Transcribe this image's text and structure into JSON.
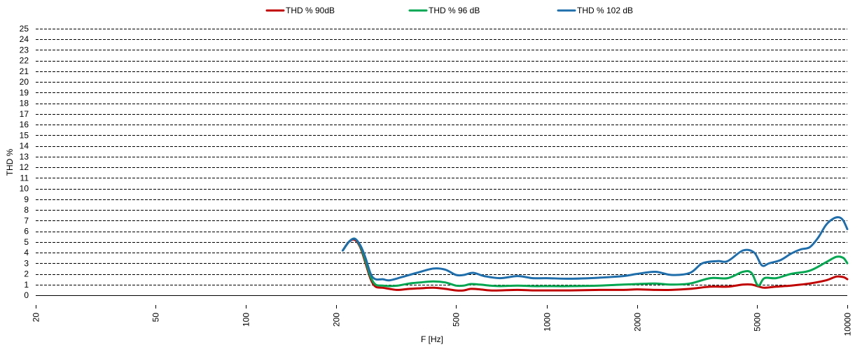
{
  "chart_data": {
    "type": "line",
    "xlabel": "F [Hz]",
    "ylabel": "THD %",
    "x_scale": "log",
    "xlim": [
      20,
      10000
    ],
    "ylim": [
      0,
      25
    ],
    "x_ticks": [
      20,
      50,
      100,
      200,
      500,
      1000,
      2000,
      5000,
      10000
    ],
    "y_ticks": [
      0,
      1,
      2,
      3,
      4,
      5,
      6,
      7,
      8,
      9,
      10,
      11,
      12,
      13,
      14,
      15,
      16,
      17,
      18,
      19,
      20,
      21,
      22,
      23,
      24,
      25
    ],
    "grid": {
      "horizontal": true,
      "vertical": false,
      "style": "dashed"
    },
    "legend_position": "top",
    "series": [
      {
        "name": "THD % 90dB",
        "color": "#c00000",
        "points": [
          [
            210,
            4.2
          ],
          [
            220,
            5.0
          ],
          [
            230,
            5.2
          ],
          [
            240,
            4.5
          ],
          [
            250,
            3.0
          ],
          [
            260,
            1.5
          ],
          [
            270,
            0.8
          ],
          [
            285,
            0.7
          ],
          [
            300,
            0.6
          ],
          [
            320,
            0.5
          ],
          [
            350,
            0.6
          ],
          [
            380,
            0.65
          ],
          [
            420,
            0.7
          ],
          [
            460,
            0.6
          ],
          [
            500,
            0.45
          ],
          [
            530,
            0.45
          ],
          [
            560,
            0.6
          ],
          [
            600,
            0.55
          ],
          [
            650,
            0.45
          ],
          [
            700,
            0.45
          ],
          [
            800,
            0.5
          ],
          [
            900,
            0.45
          ],
          [
            1000,
            0.45
          ],
          [
            1200,
            0.45
          ],
          [
            1500,
            0.5
          ],
          [
            1800,
            0.5
          ],
          [
            2000,
            0.55
          ],
          [
            2300,
            0.5
          ],
          [
            2600,
            0.5
          ],
          [
            3000,
            0.6
          ],
          [
            3500,
            0.8
          ],
          [
            4000,
            0.8
          ],
          [
            4500,
            1.0
          ],
          [
            4800,
            1.0
          ],
          [
            5100,
            0.8
          ],
          [
            5300,
            0.7
          ],
          [
            5800,
            0.8
          ],
          [
            6500,
            0.9
          ],
          [
            7500,
            1.1
          ],
          [
            8500,
            1.4
          ],
          [
            9200,
            1.75
          ],
          [
            9700,
            1.7
          ],
          [
            10000,
            1.5
          ]
        ]
      },
      {
        "name": "THD % 96 dB",
        "color": "#00a651",
        "points": [
          [
            210,
            4.2
          ],
          [
            220,
            5.0
          ],
          [
            230,
            5.3
          ],
          [
            240,
            4.6
          ],
          [
            250,
            3.2
          ],
          [
            260,
            1.7
          ],
          [
            270,
            1.0
          ],
          [
            285,
            0.9
          ],
          [
            300,
            0.85
          ],
          [
            320,
            0.9
          ],
          [
            350,
            1.1
          ],
          [
            380,
            1.2
          ],
          [
            420,
            1.3
          ],
          [
            460,
            1.2
          ],
          [
            500,
            0.9
          ],
          [
            530,
            0.9
          ],
          [
            560,
            1.05
          ],
          [
            600,
            1.0
          ],
          [
            650,
            0.9
          ],
          [
            700,
            0.85
          ],
          [
            800,
            0.9
          ],
          [
            900,
            0.85
          ],
          [
            1000,
            0.85
          ],
          [
            1200,
            0.85
          ],
          [
            1500,
            0.9
          ],
          [
            1800,
            1.0
          ],
          [
            2000,
            1.05
          ],
          [
            2300,
            1.1
          ],
          [
            2600,
            1.0
          ],
          [
            3000,
            1.1
          ],
          [
            3500,
            1.6
          ],
          [
            4000,
            1.6
          ],
          [
            4500,
            2.2
          ],
          [
            4800,
            2.1
          ],
          [
            5050,
            0.9
          ],
          [
            5300,
            1.6
          ],
          [
            5800,
            1.6
          ],
          [
            6500,
            2.0
          ],
          [
            7500,
            2.3
          ],
          [
            8500,
            3.1
          ],
          [
            9200,
            3.6
          ],
          [
            9700,
            3.5
          ],
          [
            10000,
            3.0
          ]
        ]
      },
      {
        "name": "THD % 102 dB",
        "color": "#1f6eab",
        "points": [
          [
            210,
            4.2
          ],
          [
            220,
            5.0
          ],
          [
            230,
            5.3
          ],
          [
            240,
            4.7
          ],
          [
            250,
            3.5
          ],
          [
            260,
            2.0
          ],
          [
            270,
            1.5
          ],
          [
            285,
            1.5
          ],
          [
            300,
            1.4
          ],
          [
            330,
            1.7
          ],
          [
            370,
            2.1
          ],
          [
            420,
            2.5
          ],
          [
            460,
            2.4
          ],
          [
            500,
            1.9
          ],
          [
            530,
            1.9
          ],
          [
            570,
            2.1
          ],
          [
            620,
            1.8
          ],
          [
            700,
            1.6
          ],
          [
            800,
            1.8
          ],
          [
            900,
            1.6
          ],
          [
            1000,
            1.6
          ],
          [
            1200,
            1.55
          ],
          [
            1500,
            1.65
          ],
          [
            1800,
            1.8
          ],
          [
            2000,
            2.0
          ],
          [
            2300,
            2.2
          ],
          [
            2600,
            1.9
          ],
          [
            3000,
            2.1
          ],
          [
            3300,
            3.0
          ],
          [
            3700,
            3.2
          ],
          [
            4000,
            3.2
          ],
          [
            4500,
            4.2
          ],
          [
            4900,
            4.0
          ],
          [
            5200,
            2.8
          ],
          [
            5500,
            3.0
          ],
          [
            6000,
            3.3
          ],
          [
            6500,
            3.9
          ],
          [
            7000,
            4.3
          ],
          [
            7500,
            4.5
          ],
          [
            8000,
            5.4
          ],
          [
            8500,
            6.6
          ],
          [
            9000,
            7.2
          ],
          [
            9400,
            7.3
          ],
          [
            9700,
            7.0
          ],
          [
            10000,
            6.2
          ]
        ]
      }
    ]
  }
}
